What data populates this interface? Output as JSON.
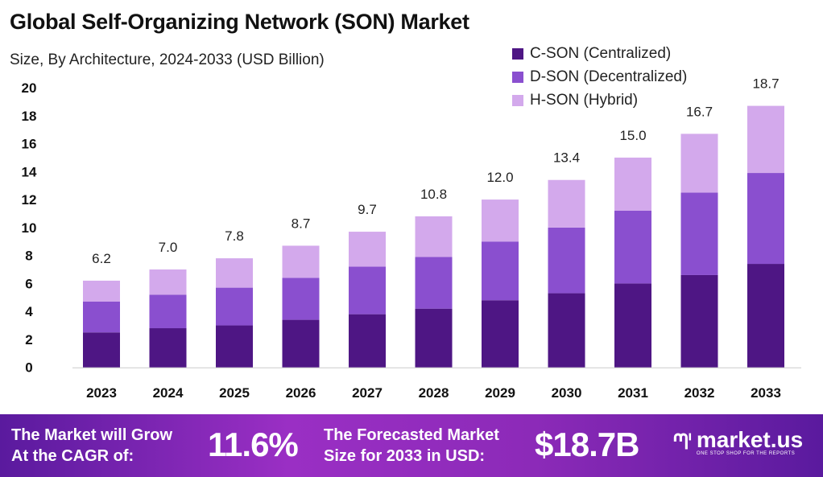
{
  "header": {
    "title": "Global Self-Organizing Network (SON) Market",
    "subtitle": "Size, By Architecture, 2024-2033 (USD Billion)"
  },
  "chart_data": {
    "type": "bar",
    "stacked": true,
    "categories": [
      "2023",
      "2024",
      "2025",
      "2026",
      "2027",
      "2028",
      "2029",
      "2030",
      "2031",
      "2032",
      "2033"
    ],
    "series": [
      {
        "name": "C-SON (Centralized)",
        "color": "#4e1684",
        "values": [
          2.5,
          2.8,
          3.0,
          3.4,
          3.8,
          4.2,
          4.8,
          5.3,
          6.0,
          6.6,
          7.4
        ]
      },
      {
        "name": "D-SON (Decentralized)",
        "color": "#8a4fcf",
        "values": [
          2.2,
          2.4,
          2.7,
          3.0,
          3.4,
          3.7,
          4.2,
          4.7,
          5.2,
          5.9,
          6.5
        ]
      },
      {
        "name": "H-SON (Hybrid)",
        "color": "#d3a9ec",
        "values": [
          1.5,
          1.8,
          2.1,
          2.3,
          2.5,
          2.9,
          3.0,
          3.4,
          3.8,
          4.2,
          4.8
        ]
      }
    ],
    "totals": [
      "6.2",
      "7.0",
      "7.8",
      "8.7",
      "9.7",
      "10.8",
      "12.0",
      "13.4",
      "15.0",
      "16.7",
      "18.7"
    ],
    "ylim": [
      0,
      20
    ],
    "yticks": [
      "0",
      "2",
      "4",
      "6",
      "8",
      "10",
      "12",
      "14",
      "16",
      "18",
      "20"
    ],
    "grid": false,
    "legend": "top-right"
  },
  "footer": {
    "cagr_label_1": "The Market will Grow",
    "cagr_label_2": "At the CAGR of:",
    "cagr_value": "11.6%",
    "forecast_label_1": "The Forecasted Market",
    "forecast_label_2": "Size for 2033 in USD:",
    "forecast_value": "$18.7B",
    "logo_text": "market.us",
    "logo_tagline": "ONE STOP SHOP FOR THE REPORTS"
  }
}
